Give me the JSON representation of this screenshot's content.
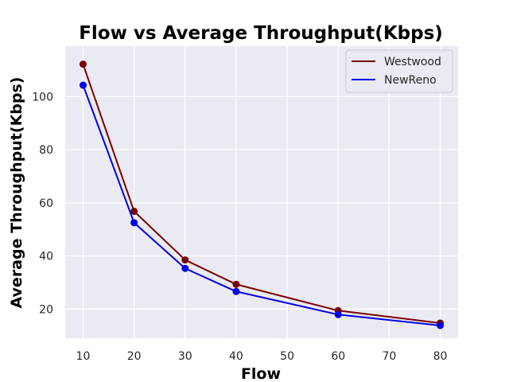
{
  "chart_data": {
    "type": "line",
    "title": "Flow vs Average Throughput(Kbps)",
    "xlabel": "Flow",
    "ylabel": "Average Throughput(Kbps)",
    "x": [
      10,
      20,
      30,
      40,
      60,
      80
    ],
    "xlim": [
      6.5,
      83.5
    ],
    "ylim": [
      9,
      119
    ],
    "xticks": [
      10,
      20,
      30,
      40,
      50,
      60,
      70,
      80
    ],
    "yticks": [
      20,
      40,
      60,
      80,
      100
    ],
    "grid": true,
    "legend_position": "top-right",
    "series": [
      {
        "name": "Westwood",
        "color": "#7a0000",
        "values": [
          112.2,
          56.8,
          38.5,
          29.3,
          19.4,
          14.7
        ]
      },
      {
        "name": "NewReno",
        "color": "#0000e6",
        "values": [
          104.3,
          52.5,
          35.3,
          26.6,
          17.9,
          13.8
        ]
      }
    ],
    "background_color": "#eaeaf2",
    "grid_color": "#ffffff"
  }
}
